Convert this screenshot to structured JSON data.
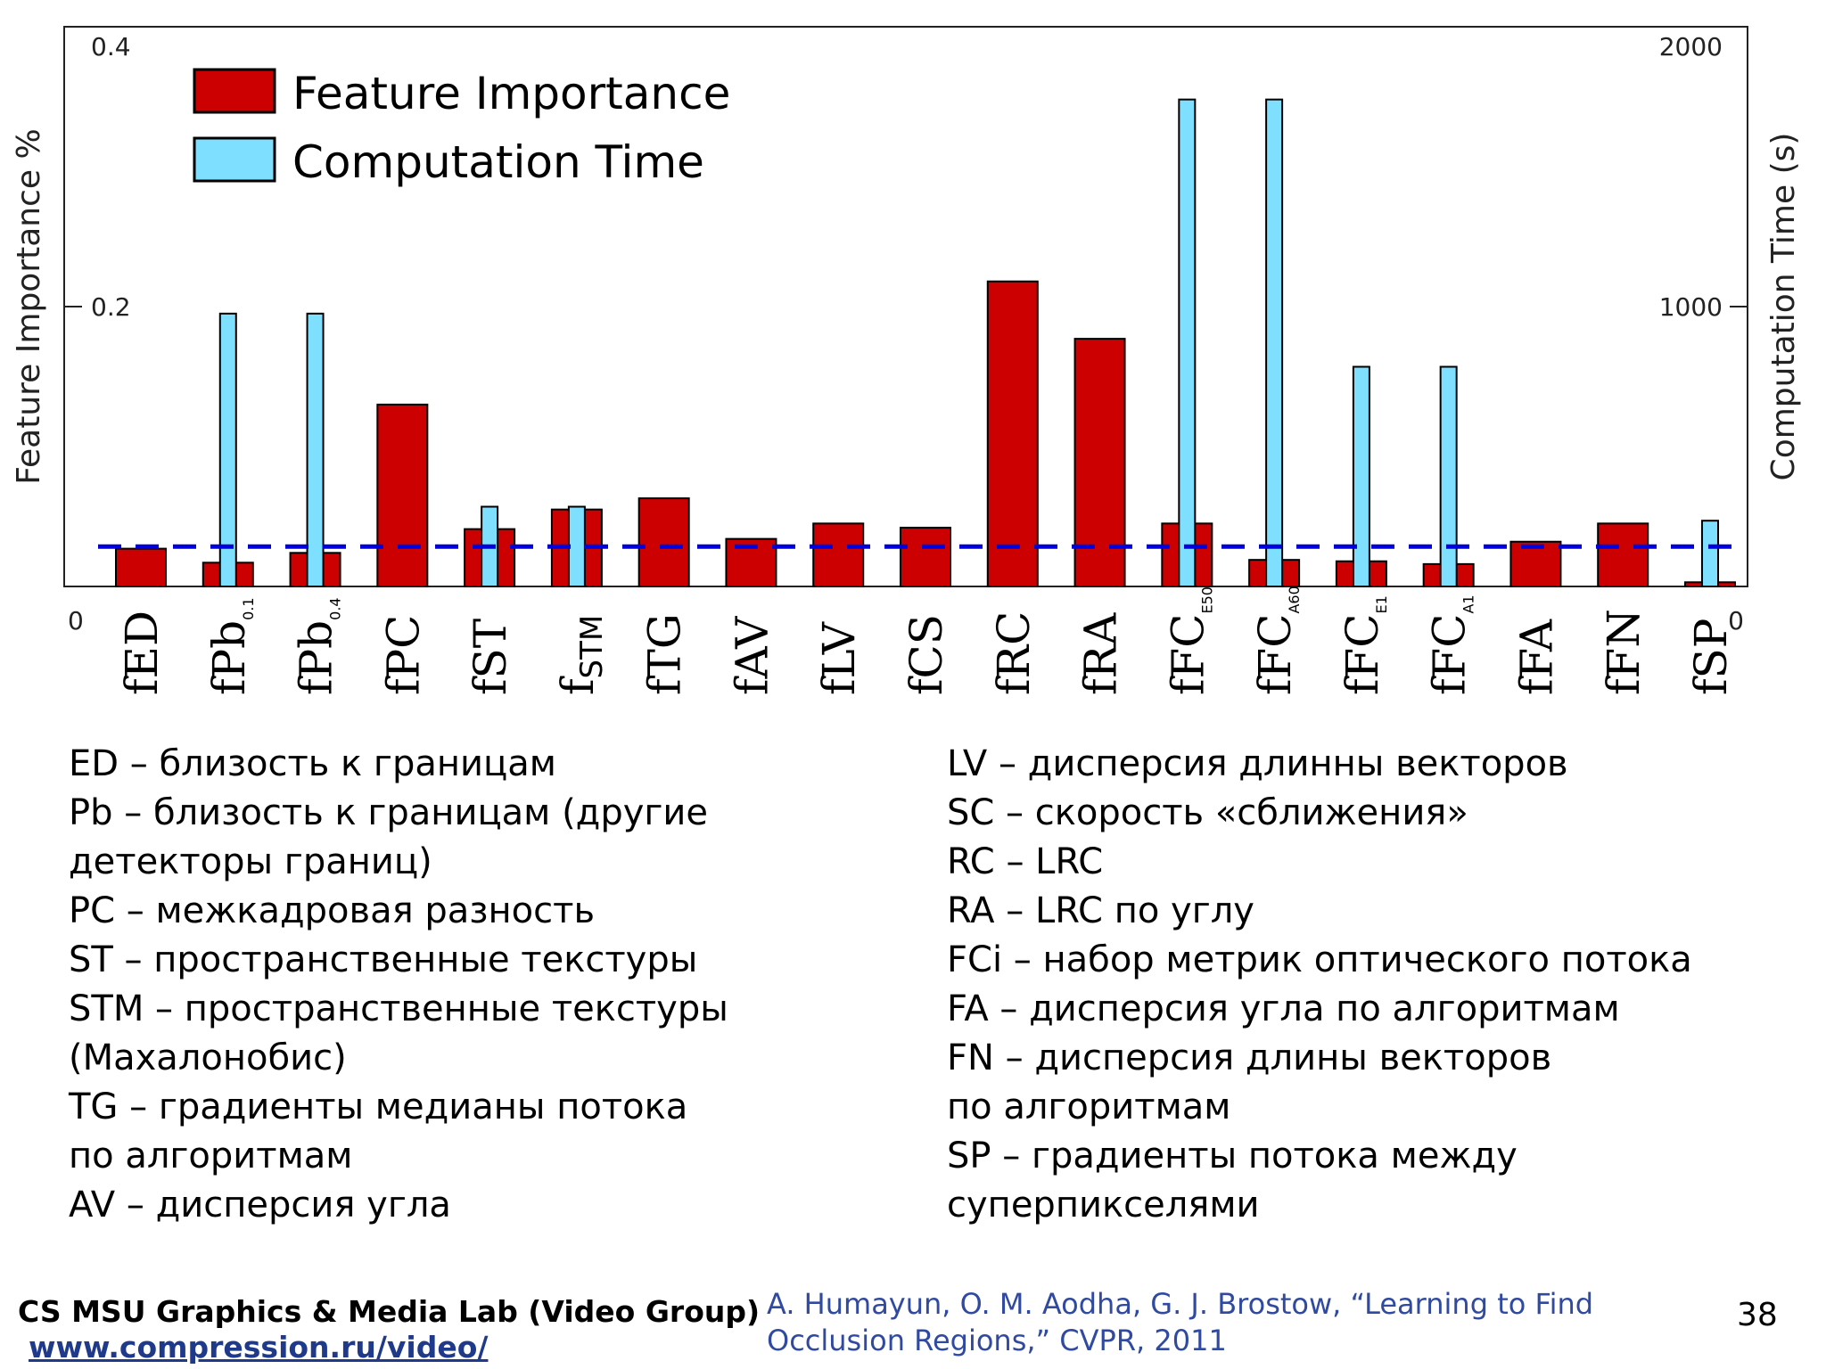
{
  "chart_data": {
    "type": "bar",
    "categories": [
      "fED",
      "fPb0.1",
      "fPb0.4",
      "fPC",
      "fST",
      "fSTM",
      "fTG",
      "fAV",
      "fLV",
      "fCS",
      "fRC",
      "fRA",
      "fFCE50",
      "fFCA60",
      "fFCE1",
      "fFCA1",
      "fFA",
      "fFN",
      "fSP"
    ],
    "category_labels": [
      {
        "main": "fED",
        "sub": ""
      },
      {
        "main": "fPb",
        "sub": "0.1"
      },
      {
        "main": "fPb",
        "sub": "0.4"
      },
      {
        "main": "fPC",
        "sub": ""
      },
      {
        "main": "fST",
        "sub": ""
      },
      {
        "main": "f",
        "sub": "STM"
      },
      {
        "main": "fTG",
        "sub": ""
      },
      {
        "main": "fAV",
        "sub": ""
      },
      {
        "main": "fLV",
        "sub": ""
      },
      {
        "main": "fCS",
        "sub": ""
      },
      {
        "main": "fRC",
        "sub": ""
      },
      {
        "main": "fRA",
        "sub": ""
      },
      {
        "main": "fFC",
        "sub": "E50"
      },
      {
        "main": "fFC",
        "sub": "A60"
      },
      {
        "main": "fFC",
        "sub": "E1"
      },
      {
        "main": "fFC",
        "sub": "A1"
      },
      {
        "main": "fFA",
        "sub": ""
      },
      {
        "main": "fFN",
        "sub": ""
      },
      {
        "main": "fSP",
        "sub": ""
      }
    ],
    "series": [
      {
        "name": "Feature Importance",
        "axis": "left",
        "color": "#cc0000",
        "values": [
          0.027,
          0.017,
          0.024,
          0.13,
          0.041,
          0.055,
          0.063,
          0.034,
          0.045,
          0.042,
          0.218,
          0.177,
          0.045,
          0.019,
          0.018,
          0.016,
          0.032,
          0.045,
          0.003
        ]
      },
      {
        "name": "Computation Time",
        "axis": "right",
        "color": "#7fdfff",
        "values": [
          0,
          975,
          975,
          0,
          285,
          285,
          0,
          0,
          0,
          0,
          0,
          0,
          1740,
          1740,
          785,
          785,
          0,
          0,
          235
        ]
      }
    ],
    "reference_line": {
      "value": 0.0285,
      "axis": "left",
      "style": "dashed",
      "color": "#0000dd"
    },
    "ylabel": "Feature Importance %",
    "y2label": "Computation Time (s)",
    "ylim": [
      0,
      0.4
    ],
    "y2lim": [
      0,
      2000
    ],
    "yticks": [
      "0",
      "0.2",
      "0.4"
    ],
    "y2ticks": [
      "0",
      "1000",
      "2000"
    ],
    "legend_placement": "top-left"
  },
  "legend_left": [
    "ED – близость к границам",
    "Pb – близость к границам (другие",
    "детекторы границ)",
    "PC – межкадровая разность",
    "ST – пространственные текстуры",
    "STM – пространственные текстуры",
    "(Махалонобис)",
    "TG – градиенты медианы потока",
    "по алгоритмам",
    "AV – дисперсия угла"
  ],
  "legend_right": [
    "LV – дисперсия длинны векторов",
    "SC – скорость «сближения»",
    "RC – LRC",
    "RA – LRC по углу",
    "FCi – набор метрик оптического потока",
    "FA – дисперсия угла по алгоритмам",
    "FN – дисперсия длины векторов",
    "по алгоритмам",
    "SP – градиенты потока между",
    "суперпикселями"
  ],
  "footer": {
    "lab": "CS MSU Graphics & Media Lab (Video Group)",
    "url": "www.compression.ru/video/",
    "citation": "A. Humayun, O. M. Aodha, G. J. Brostow, “Learning to Find Occlusion Regions,” CVPR, 2011",
    "page": "38"
  }
}
